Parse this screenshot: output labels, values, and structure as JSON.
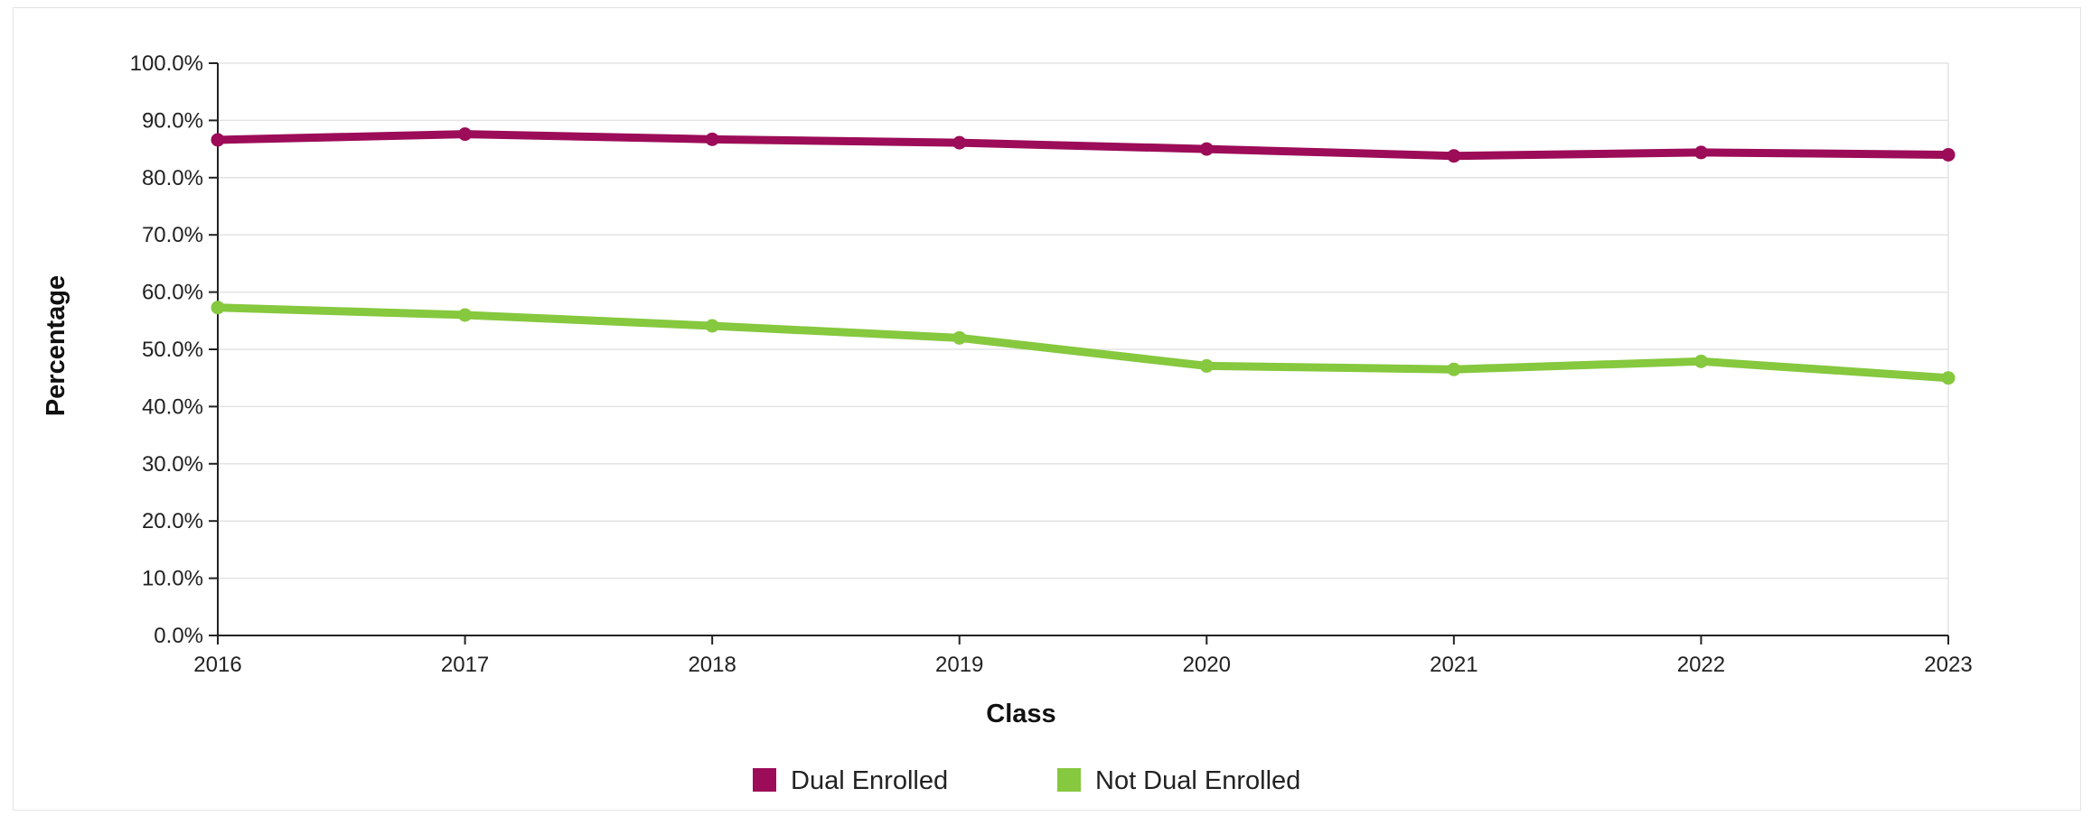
{
  "chart_data": {
    "type": "line",
    "xlabel": "Class",
    "ylabel": "Percentage",
    "categories": [
      "2016",
      "2017",
      "2018",
      "2019",
      "2020",
      "2021",
      "2022",
      "2023"
    ],
    "ylim": [
      0,
      100
    ],
    "yticks": [
      "0.0%",
      "10.0%",
      "20.0%",
      "30.0%",
      "40.0%",
      "50.0%",
      "60.0%",
      "70.0%",
      "80.0%",
      "90.0%",
      "100.0%"
    ],
    "grid": true,
    "legend_position": "bottom-center",
    "series": [
      {
        "name": "Dual Enrolled",
        "color": "#9c0c58",
        "values": [
          86.6,
          87.6,
          86.7,
          86.1,
          85.0,
          83.8,
          84.4,
          84.0
        ]
      },
      {
        "name": "Not Dual Enrolled",
        "color": "#86c83e",
        "values": [
          57.3,
          56.0,
          54.1,
          52.0,
          47.1,
          46.5,
          47.9,
          45.0
        ]
      }
    ]
  }
}
